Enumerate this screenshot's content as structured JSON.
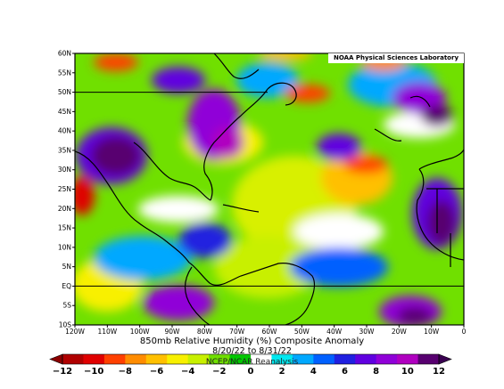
{
  "map": {
    "title": "850mb Relative Humidity (%) Composite Anomaly",
    "dates": "8/20/22  to 8/31/22",
    "credit": "NCEP/NCAR Reanalysis",
    "lab": "NOAA Physical Sciences Laboratory",
    "lat_labels": [
      "60N",
      "55N",
      "50N",
      "45N",
      "40N",
      "35N",
      "30N",
      "25N",
      "20N",
      "15N",
      "10N",
      "5N",
      "EQ",
      "5S",
      "10S"
    ],
    "lon_labels": [
      "120W",
      "110W",
      "100W",
      "90W",
      "80W",
      "70W",
      "60W",
      "50W",
      "40W",
      "30W",
      "20W",
      "10W",
      "0"
    ],
    "extent": {
      "lon_min": -120,
      "lon_max": 0,
      "lat_min": -10,
      "lat_max": 60
    }
  },
  "colorbar": {
    "labels": [
      "−12",
      "−10",
      "−8",
      "−6",
      "−4",
      "−2",
      "0",
      "2",
      "4",
      "6",
      "8",
      "10",
      "12"
    ],
    "colors": [
      "#b00000",
      "#e00000",
      "#ff4000",
      "#ff8c00",
      "#ffc000",
      "#f8f000",
      "#c8f000",
      "#70e000",
      "#00c800",
      "#ffffff",
      "#00e8f0",
      "#00a8ff",
      "#0060ff",
      "#2020e0",
      "#6000e0",
      "#9000d8",
      "#b000c0",
      "#580070"
    ]
  },
  "legend_map": {
    "-12": "#b00000",
    "-10": "#e00000",
    "-8": "#ff4000",
    "-6": "#ff8c00",
    "-4": "#ffc000",
    "-2": "#f8f000",
    "0": "#ffffff",
    "2": "#00a8ff",
    "4": "#0060ff",
    "6": "#2020e0",
    "8": "#6000e0",
    "10": "#9000d8",
    "12": "#580070"
  }
}
